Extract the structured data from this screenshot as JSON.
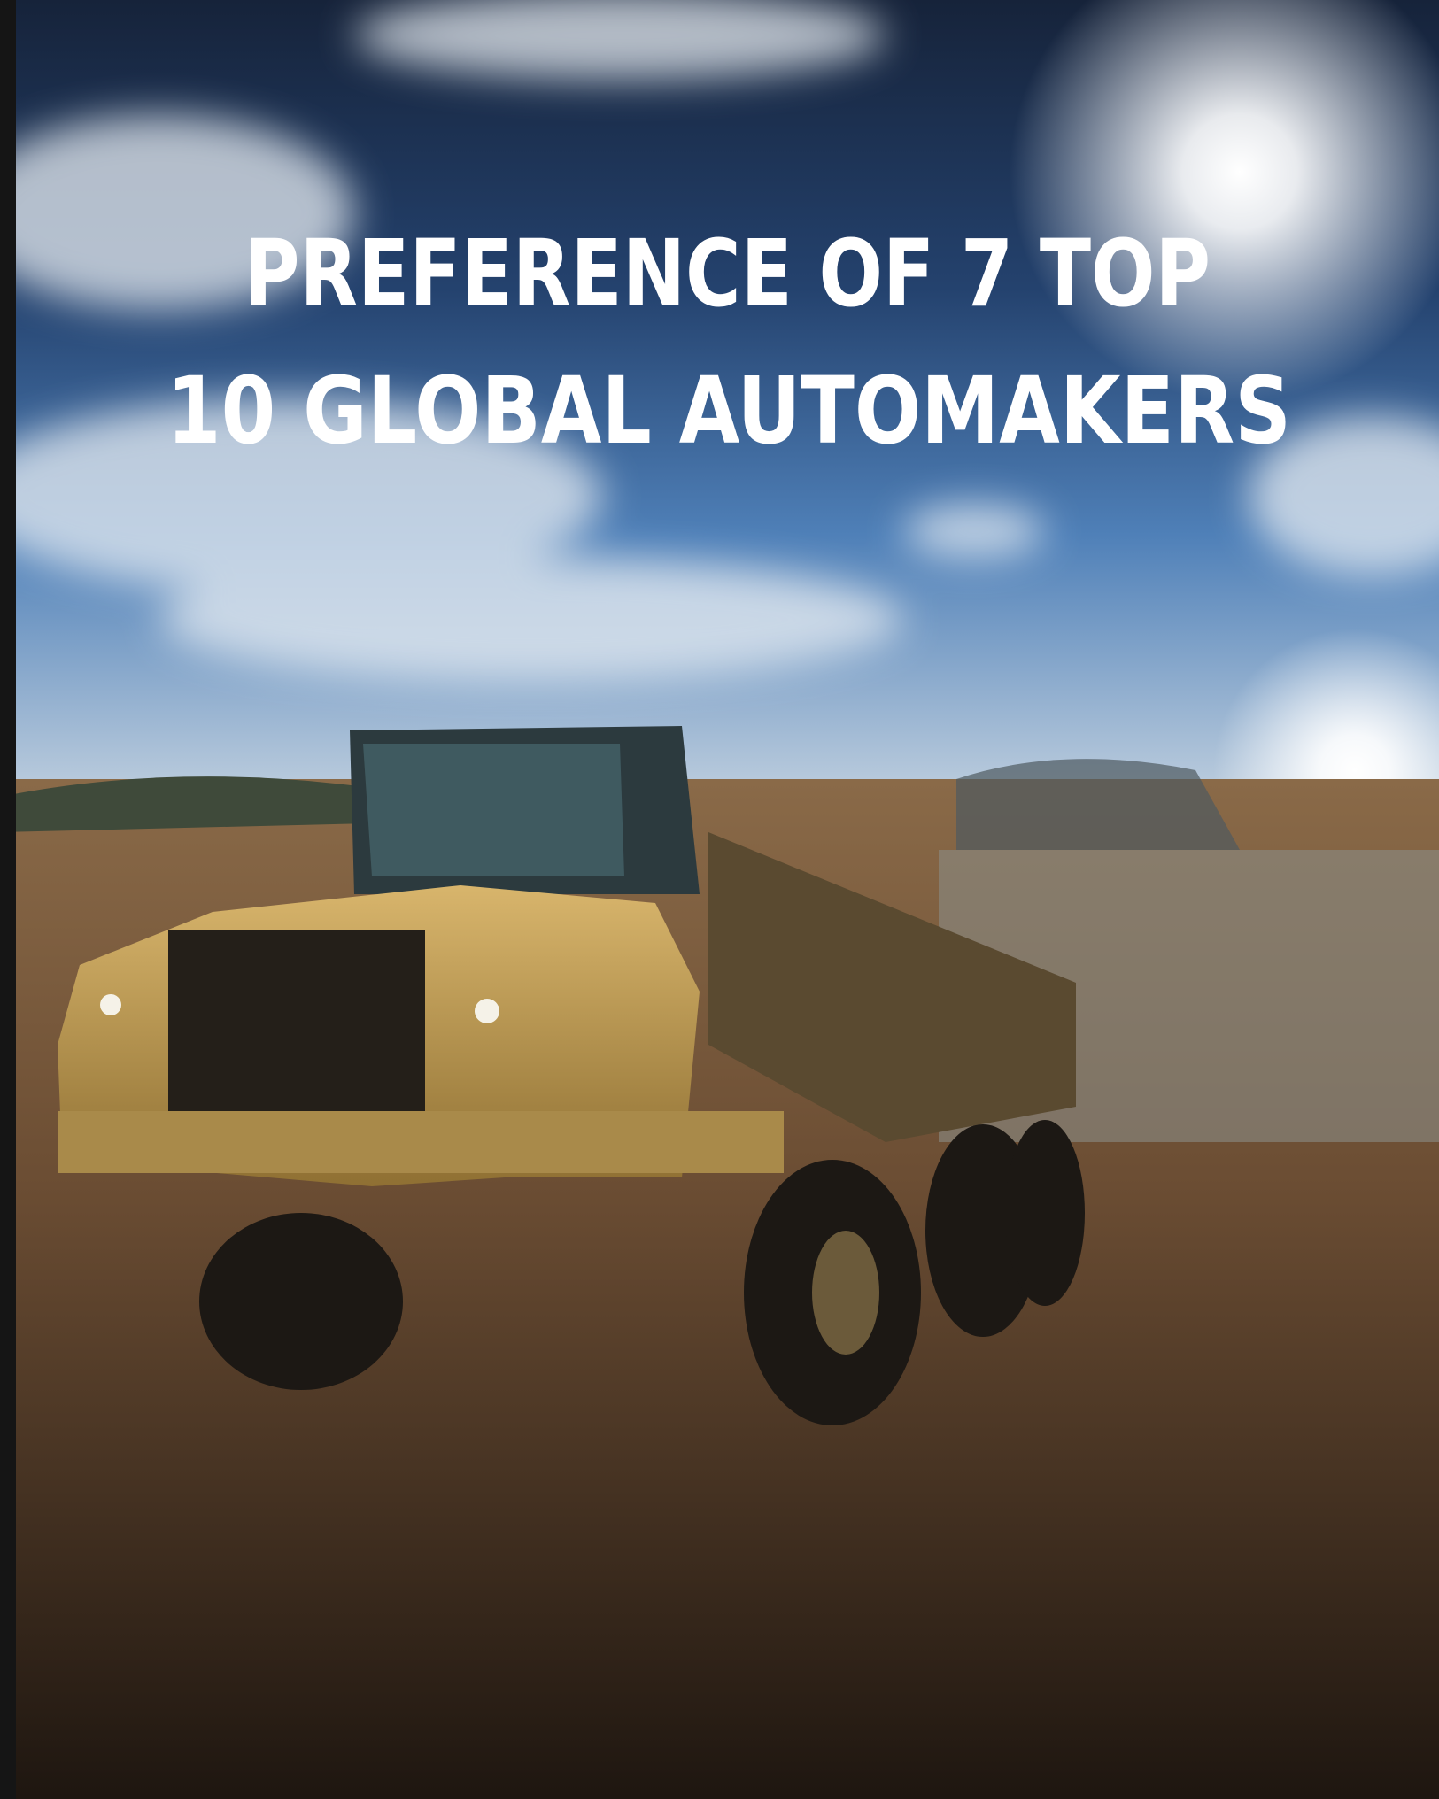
{
  "title": {
    "line1": "PREFERENCE OF 7 TOP",
    "line2": "10 GLOBAL AUTOMAKERS"
  }
}
